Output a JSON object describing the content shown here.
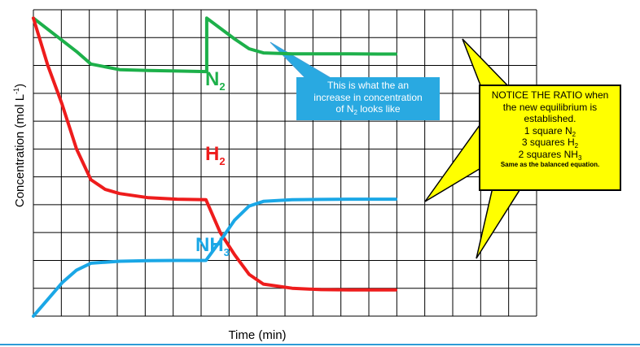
{
  "axes": {
    "ylabel_prefix": "Concentration (mol L",
    "ylabel_sup": "-1",
    "ylabel_suffix": ")",
    "xlabel": "Time (min)"
  },
  "labels": {
    "n2_main": "N",
    "n2_sub": "2",
    "h2_main": "H",
    "h2_sub": "2",
    "nh3_main": "NH",
    "nh3_sub": "3"
  },
  "callouts": {
    "blue": {
      "line1": "This is what the an",
      "line2": "increase in concentration",
      "line3_pre": "of N",
      "line3_sub": "2",
      "line3_post": " looks like"
    },
    "yellow": {
      "line1": "NOTICE THE RATIO when",
      "line2": "the new equilibrium is",
      "line3": "established.",
      "line4_pre": "1 square N",
      "line4_sub": "2",
      "line5_pre": "3 squares H",
      "line5_sub": "2",
      "line6_pre": "2 squares NH",
      "line6_sub": "3",
      "line7": "Same as the balanced equation."
    }
  },
  "colors": {
    "n2": "#1db04a",
    "h2": "#ee1c1c",
    "nh3": "#1aa7e6",
    "grid": "#000000",
    "callout_blue": "#29a9e1",
    "callout_yellow": "#ffff00"
  },
  "chart_data": {
    "type": "line",
    "xlabel": "Time (min)",
    "ylabel": "Concentration (mol L-1)",
    "grid": true,
    "xlim": [
      0,
      17.5
    ],
    "ylim": [
      0,
      11
    ],
    "series": [
      {
        "name": "N2",
        "x": [
          0,
          1,
          1.5,
          2,
          3,
          4,
          5,
          6,
          6.03,
          6.03,
          7,
          7.5,
          8,
          9,
          10,
          11,
          12,
          12.6
        ],
        "y": [
          10.7,
          9.9,
          9.5,
          9.05,
          8.85,
          8.82,
          8.8,
          8.78,
          8.78,
          10.7,
          9.95,
          9.6,
          9.45,
          9.42,
          9.42,
          9.42,
          9.41,
          9.41
        ]
      },
      {
        "name": "H2",
        "x": [
          0,
          0.5,
          1,
          1.5,
          2,
          2.5,
          3,
          4,
          5,
          6,
          6.5,
          7,
          7.5,
          8,
          9,
          10,
          11,
          12,
          12.6
        ],
        "y": [
          10.7,
          9.0,
          7.6,
          6.0,
          4.9,
          4.55,
          4.4,
          4.25,
          4.2,
          4.18,
          3.0,
          2.2,
          1.5,
          1.15,
          1.0,
          0.95,
          0.94,
          0.94,
          0.94
        ]
      },
      {
        "name": "NH3",
        "x": [
          0,
          0.5,
          1,
          1.5,
          2,
          3,
          4,
          5,
          6,
          6.5,
          7,
          7.5,
          8,
          9,
          10,
          11,
          12,
          12.6
        ],
        "y": [
          0,
          0.6,
          1.2,
          1.65,
          1.9,
          1.97,
          1.99,
          2.0,
          2.0,
          2.7,
          3.45,
          3.95,
          4.12,
          4.18,
          4.19,
          4.2,
          4.2,
          4.2
        ]
      }
    ]
  }
}
